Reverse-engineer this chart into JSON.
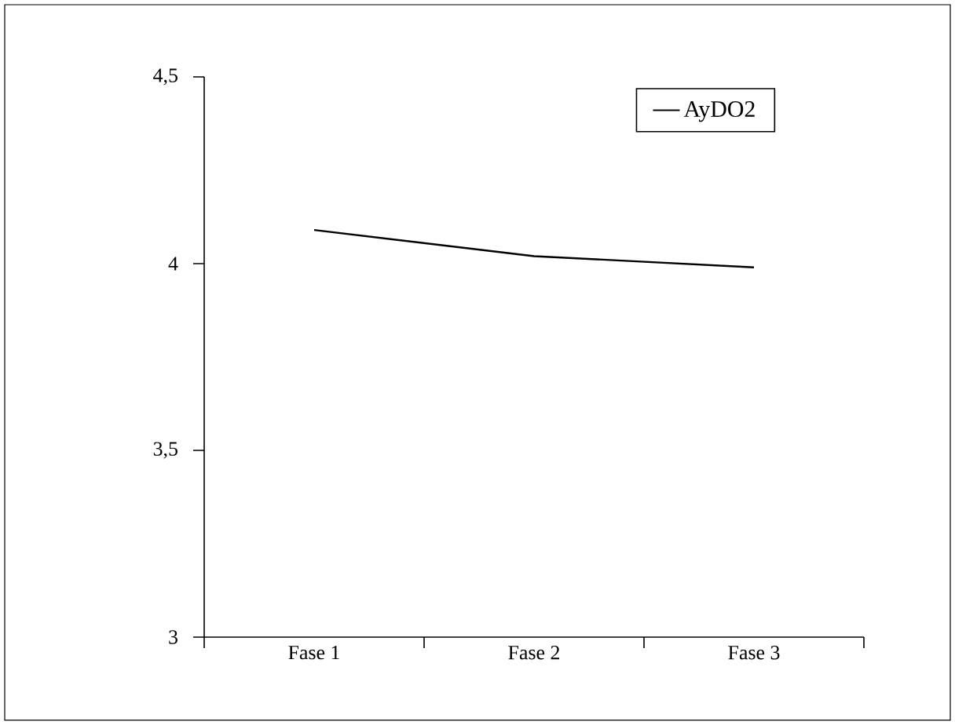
{
  "chart_data": {
    "type": "line",
    "categories": [
      "Fase 1",
      "Fase 2",
      "Fase 3"
    ],
    "series": [
      {
        "name": "AyDO2",
        "color": "#000000",
        "values": [
          4.09,
          4.02,
          3.99
        ]
      }
    ],
    "ylim": [
      3,
      4.5
    ],
    "yticks": [
      {
        "value": 3,
        "label": "3"
      },
      {
        "value": 3.5,
        "label": "3,5"
      },
      {
        "value": 4,
        "label": "4"
      },
      {
        "value": 4.5,
        "label": "4,5"
      }
    ],
    "legend": "top right",
    "grid": false,
    "line_style": "solid"
  }
}
